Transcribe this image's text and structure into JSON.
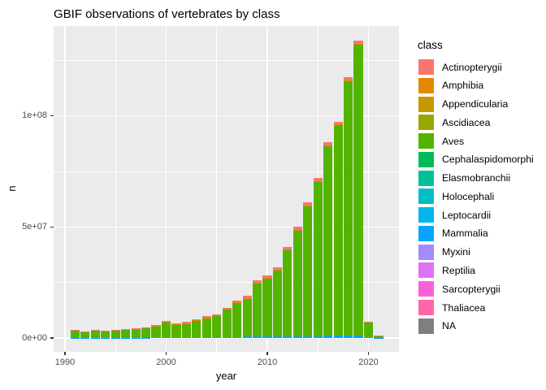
{
  "title": "GBIF observations of vertebrates by class",
  "axes": {
    "x_label": "year",
    "y_label": "n",
    "x_tick_labels": [
      "1990",
      "2000",
      "2010",
      "2020"
    ],
    "x_tick_values": [
      1990,
      2000,
      2010,
      2020
    ],
    "x_minor_tick_values": [
      1995,
      2005,
      2015
    ],
    "y_tick_labels": [
      "0e+00",
      "5e+07",
      "1e+08"
    ],
    "y_tick_values": [
      0,
      50000000,
      100000000
    ],
    "y_minor_tick_values": [
      25000000,
      75000000,
      125000000
    ],
    "xlim": [
      1989,
      2023
    ],
    "ylim": [
      0,
      140500000
    ]
  },
  "legend": {
    "title": "class",
    "items": [
      {
        "label": "Actinopterygii",
        "color": "#F8766D"
      },
      {
        "label": "Amphibia",
        "color": "#E38900"
      },
      {
        "label": "Appendicularia",
        "color": "#C49A00"
      },
      {
        "label": "Ascidiacea",
        "color": "#99A800"
      },
      {
        "label": "Aves",
        "color": "#53B400"
      },
      {
        "label": "Cephalaspidomorphi",
        "color": "#00BC56"
      },
      {
        "label": "Elasmobranchii",
        "color": "#00C094"
      },
      {
        "label": "Holocephali",
        "color": "#00BFC4"
      },
      {
        "label": "Leptocardii",
        "color": "#00B6EB"
      },
      {
        "label": "Mammalia",
        "color": "#06A4FF"
      },
      {
        "label": "Myxini",
        "color": "#A58AFF"
      },
      {
        "label": "Reptilia",
        "color": "#DF70F8"
      },
      {
        "label": "Sarcopterygii",
        "color": "#FB61D7"
      },
      {
        "label": "Thaliacea",
        "color": "#FF66A8"
      },
      {
        "label": "NA",
        "color": "#7F7F7F"
      }
    ]
  },
  "colors": {
    "panel_bg": "#EBEBEB",
    "grid": "#FFFFFF",
    "tick_text": "#4D4D4D",
    "tick_mark": "#333333",
    "title_text": "#000000"
  },
  "chart_data": {
    "type": "bar",
    "stacked": true,
    "stack_order": "bottom_to_top",
    "x": [
      1991,
      1992,
      1993,
      1994,
      1995,
      1996,
      1997,
      1998,
      1999,
      2000,
      2001,
      2002,
      2003,
      2004,
      2005,
      2006,
      2007,
      2008,
      2009,
      2010,
      2011,
      2012,
      2013,
      2014,
      2015,
      2016,
      2017,
      2018,
      2019,
      2020,
      2021
    ],
    "totals": [
      3800000,
      3100000,
      3500000,
      3400000,
      3800000,
      3900000,
      4400000,
      4900000,
      5900000,
      7700000,
      6600000,
      7200000,
      8500000,
      9800000,
      10700000,
      13700000,
      16800000,
      18900000,
      26000000,
      28000000,
      32000000,
      41000000,
      50000000,
      61000000,
      72000000,
      88000000,
      97500000,
      117500000,
      134000000,
      7400000,
      1200000
    ],
    "series": [
      {
        "name": "Mammalia",
        "color": "#06A4FF",
        "values": [
          50000,
          50000,
          50000,
          50000,
          60000,
          60000,
          80000,
          100000,
          200000,
          250000,
          250000,
          300000,
          300000,
          350000,
          400000,
          450000,
          500000,
          550000,
          600000,
          650000,
          700000,
          750000,
          800000,
          850000,
          900000,
          950000,
          1000000,
          1000000,
          1100000,
          450000,
          50000
        ]
      },
      {
        "name": "Aves",
        "color": "#53B400",
        "values": [
          3530000,
          2850000,
          3230000,
          3130000,
          3500000,
          3600000,
          4040000,
          4490000,
          5310000,
          7000000,
          5900000,
          6400000,
          7640000,
          8840000,
          9630000,
          12470000,
          15410000,
          17350000,
          24280000,
          26100000,
          30050000,
          38870000,
          47700000,
          58650000,
          69580000,
          85400000,
          94850000,
          114820000,
          131200000,
          6650000,
          1090000
        ]
      },
      {
        "name": "Amphibia",
        "color": "#E38900",
        "values": [
          20000,
          20000,
          20000,
          20000,
          20000,
          20000,
          30000,
          30000,
          40000,
          50000,
          50000,
          50000,
          60000,
          60000,
          70000,
          80000,
          90000,
          100000,
          120000,
          150000,
          150000,
          180000,
          200000,
          200000,
          220000,
          250000,
          250000,
          280000,
          300000,
          50000,
          10000
        ]
      },
      {
        "name": "Actinopterygii",
        "color": "#F8766D",
        "values": [
          200000,
          180000,
          200000,
          200000,
          220000,
          220000,
          250000,
          280000,
          350000,
          400000,
          400000,
          450000,
          500000,
          550000,
          600000,
          700000,
          800000,
          900000,
          1000000,
          1100000,
          1100000,
          1200000,
          1300000,
          1300000,
          1300000,
          1400000,
          1400000,
          1400000,
          1400000,
          250000,
          50000
        ]
      }
    ]
  }
}
